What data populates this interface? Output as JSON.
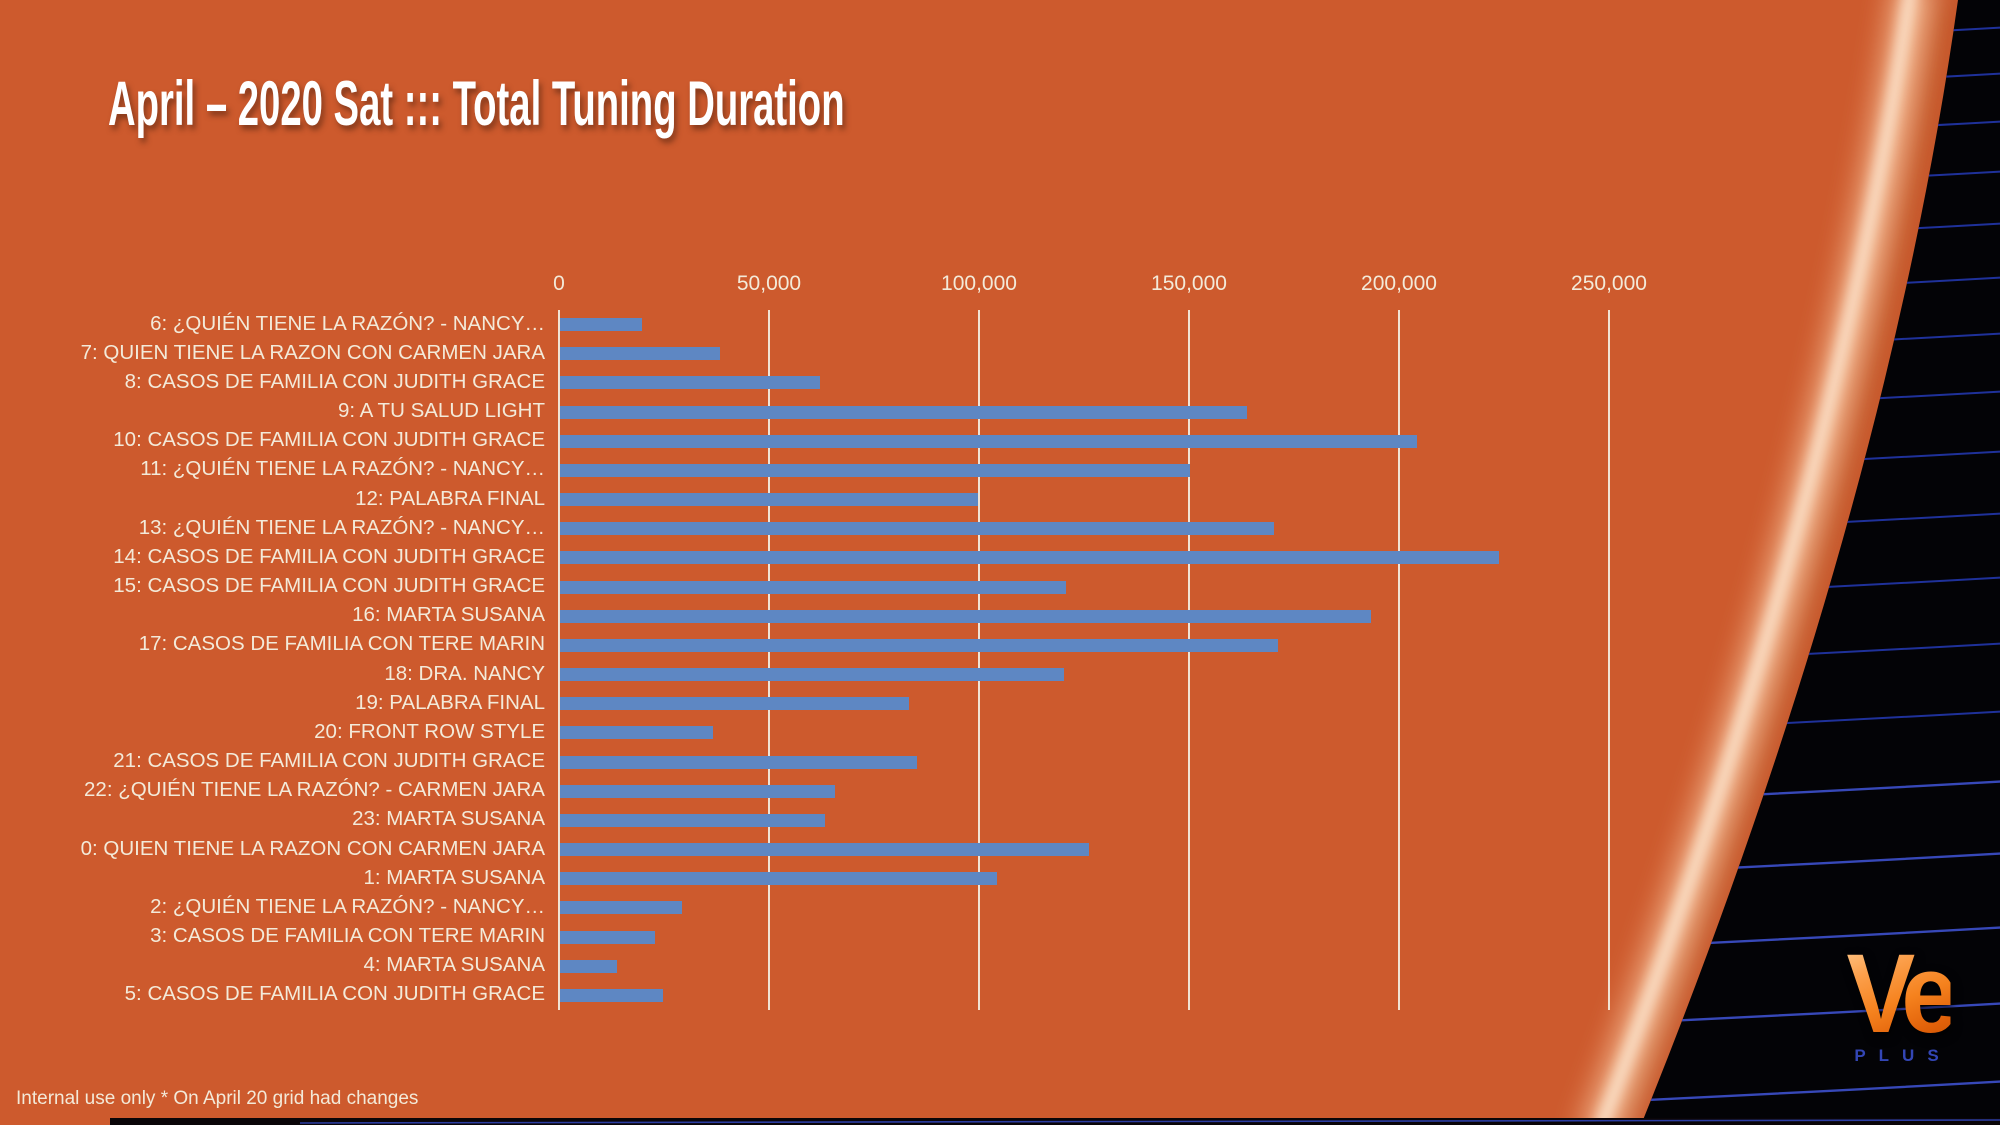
{
  "title": "April – 2020 Sat ::: Total Tuning Duration",
  "footer": "Internal use only * On April 20 grid had changes",
  "logo": {
    "brand": "Ve",
    "sub": "PLUS"
  },
  "colors": {
    "background_orange": "#CD5A2D",
    "bar_blue": "#5E87C3",
    "gridline_cream": "#F2EBDE",
    "label_cream": "#F3EAD9",
    "title_white": "#FFFFFF",
    "side_panel_black": "#030306",
    "panel_line_blue": "#2134A2",
    "logo_orange": "#F5821E",
    "logo_plus_blue": "#3346B5"
  },
  "chart_data": {
    "type": "bar",
    "orientation": "horizontal-bars",
    "title": "April – 2020 Sat ::: Total Tuning Duration",
    "xlabel": "",
    "ylabel": "",
    "xlim": [
      0,
      250000
    ],
    "grid": true,
    "legend": "none",
    "x_ticks": [
      "0",
      "50,000",
      "100,000",
      "150,000",
      "200,000",
      "250,000"
    ],
    "x_tick_values": [
      0,
      50000,
      100000,
      150000,
      200000,
      250000
    ],
    "categories": [
      "6: ¿QUIÉN TIENE LA RAZÓN? - NANCY…",
      "7: QUIEN TIENE LA RAZON CON CARMEN JARA",
      "8: CASOS DE FAMILIA CON JUDITH GRACE",
      "9: A TU SALUD LIGHT",
      "10: CASOS DE FAMILIA CON JUDITH GRACE",
      "11: ¿QUIÉN TIENE LA RAZÓN? - NANCY…",
      "12: PALABRA FINAL",
      "13: ¿QUIÉN TIENE LA RAZÓN? - NANCY…",
      "14: CASOS DE FAMILIA CON JUDITH GRACE",
      "15: CASOS DE FAMILIA CON JUDITH GRACE",
      "16: MARTA SUSANA",
      "17: CASOS DE FAMILIA CON TERE MARIN",
      "18: DRA. NANCY",
      "19: PALABRA FINAL",
      "20: FRONT ROW STYLE",
      "21: CASOS DE FAMILIA CON JUDITH GRACE",
      "22: ¿QUIÉN TIENE LA RAZÓN? - CARMEN JARA",
      "23: MARTA SUSANA",
      "0: QUIEN TIENE LA RAZON CON CARMEN JARA",
      "1: MARTA SUSANA",
      "2: ¿QUIÉN TIENE LA RAZÓN? - NANCY…",
      "3: CASOS DE FAMILIA CON TERE MARIN",
      "4: MARTA SUSANA",
      "5: CASOS DE FAMILIA CON JUDITH GRACE"
    ],
    "values": [
      19500,
      38000,
      62000,
      163500,
      204000,
      150000,
      99500,
      170000,
      223500,
      120500,
      193000,
      171000,
      120000,
      83000,
      36500,
      85000,
      65500,
      63000,
      126000,
      104000,
      29000,
      22500,
      13500,
      24500
    ]
  }
}
